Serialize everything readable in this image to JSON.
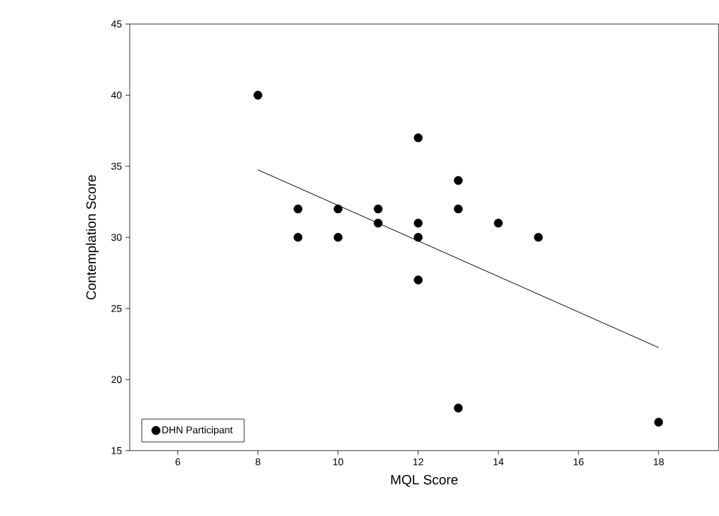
{
  "chart_data": {
    "type": "scatter",
    "xlabel": "MQL Score",
    "ylabel": "Contemplation Score",
    "xlim": [
      4.8,
      19.5
    ],
    "ylim": [
      15,
      45
    ],
    "xticks": [
      6,
      8,
      10,
      12,
      14,
      16,
      18
    ],
    "yticks": [
      15,
      20,
      25,
      30,
      35,
      40,
      45
    ],
    "legend": "bottom left",
    "series": [
      {
        "name": "DHN Participant",
        "marker": "circle",
        "color": "#000000",
        "x": [
          8,
          9,
          9,
          10,
          10,
          11,
          11,
          12,
          12,
          12,
          12,
          13,
          13,
          13,
          14,
          15,
          18
        ],
        "values": [
          40,
          32,
          30,
          32,
          30,
          32,
          31,
          37,
          31,
          30,
          27,
          34,
          32,
          18,
          31,
          30,
          17
        ]
      },
      {
        "type": "line",
        "marker": "none",
        "color": "#000000",
        "x": [
          8,
          18
        ],
        "values": [
          34.75,
          22.25
        ]
      }
    ]
  }
}
